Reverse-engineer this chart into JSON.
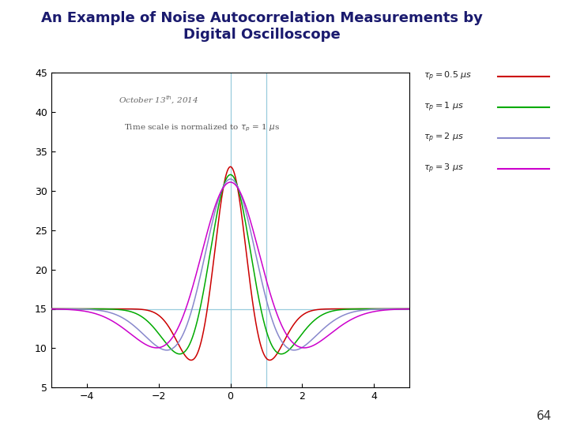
{
  "title_line1": "An Example of Noise Autocorrelation Measurements by",
  "title_line2": "Digital Oscilloscope",
  "title_color": "#1a1a6e",
  "title_fontsize": 13,
  "xlim": [
    -5,
    5
  ],
  "ylim": [
    5,
    45
  ],
  "xticks": [
    -4,
    -2,
    0,
    2,
    4
  ],
  "yticks": [
    5,
    10,
    15,
    20,
    25,
    30,
    35,
    40,
    45
  ],
  "baseline": 15.0,
  "page_number": "64",
  "curves": [
    {
      "tau": 0.5,
      "color": "#cc0000"
    },
    {
      "tau": 1.0,
      "color": "#00aa00"
    },
    {
      "tau": 2.0,
      "color": "#8888cc"
    },
    {
      "tau": 3.0,
      "color": "#cc00cc"
    }
  ],
  "vline_color": "#99ccdd",
  "hline_color": "#99ccdd",
  "bg_color": "#ffffff",
  "plot_bg": "#ffffff",
  "legend_labels": [
    "τ_p = 0.5 μs",
    "τ_p = 1 μs",
    "τ_p = 2 μs",
    "τ_p = 3 μs"
  ]
}
